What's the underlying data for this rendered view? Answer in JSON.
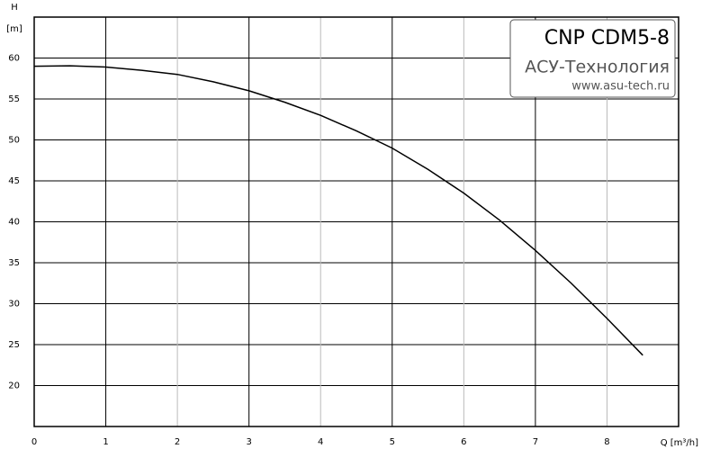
{
  "chart_data": {
    "type": "line",
    "y_label": "H",
    "y_unit": "[m]",
    "x_label": "Q [m³/h]",
    "x": [
      0,
      0.5,
      1,
      1.5,
      2,
      2.5,
      3,
      3.5,
      4,
      4.5,
      5,
      5.5,
      6,
      6.5,
      7,
      7.5,
      8,
      8.5
    ],
    "series": [
      {
        "name": "CNP CDM5-8",
        "color": "#000000",
        "values": [
          59,
          59.05,
          58.9,
          58.5,
          58,
          57.1,
          56,
          54.6,
          53,
          51.1,
          49,
          46.4,
          43.5,
          40.2,
          36.5,
          32.5,
          28.2,
          23.7
        ]
      }
    ],
    "xlim": [
      0,
      9
    ],
    "xticks": [
      0,
      1,
      2,
      3,
      4,
      5,
      6,
      7,
      8
    ],
    "ylim": [
      15,
      65
    ],
    "yticks": [
      20,
      25,
      30,
      35,
      40,
      45,
      50,
      55,
      60
    ],
    "grid": true,
    "legend_box": {
      "title": "CNP CDM5-8",
      "company": "АСУ-Технология",
      "website": "www.asu-tech.ru"
    }
  }
}
